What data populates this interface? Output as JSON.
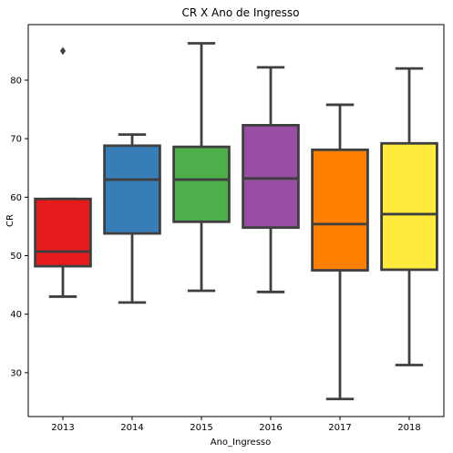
{
  "chart_data": {
    "type": "box",
    "title": "CR X Ano de Ingresso",
    "xlabel": "Ano_Ingresso",
    "ylabel": "CR",
    "ylim": [
      22.5,
      89.5
    ],
    "yticks": [
      30,
      40,
      50,
      60,
      70,
      80
    ],
    "grid": false,
    "categories": [
      "2013",
      "2014",
      "2015",
      "2016",
      "2017",
      "2018"
    ],
    "boxes": [
      {
        "category": "2013",
        "min": 43.0,
        "q1": 48.2,
        "median": 50.7,
        "q3": 59.7,
        "max": 59.7,
        "outliers": [
          85.0
        ],
        "color": "#e41a1c"
      },
      {
        "category": "2014",
        "min": 42.0,
        "q1": 53.8,
        "median": 63.0,
        "q3": 68.8,
        "max": 70.7,
        "outliers": [],
        "color": "#377eb8"
      },
      {
        "category": "2015",
        "min": 44.0,
        "q1": 55.8,
        "median": 63.0,
        "q3": 68.6,
        "max": 86.3,
        "outliers": [],
        "color": "#4daf4a"
      },
      {
        "category": "2016",
        "min": 43.8,
        "q1": 54.8,
        "median": 63.2,
        "q3": 72.3,
        "max": 82.2,
        "outliers": [],
        "color": "#984ea3"
      },
      {
        "category": "2017",
        "min": 25.5,
        "q1": 47.5,
        "median": 55.4,
        "q3": 68.1,
        "max": 75.8,
        "outliers": [],
        "color": "#ff7f00"
      },
      {
        "category": "2018",
        "min": 31.3,
        "q1": 47.6,
        "median": 57.1,
        "q3": 69.2,
        "max": 82.0,
        "outliers": [],
        "color": "#ffeb3b"
      }
    ]
  }
}
